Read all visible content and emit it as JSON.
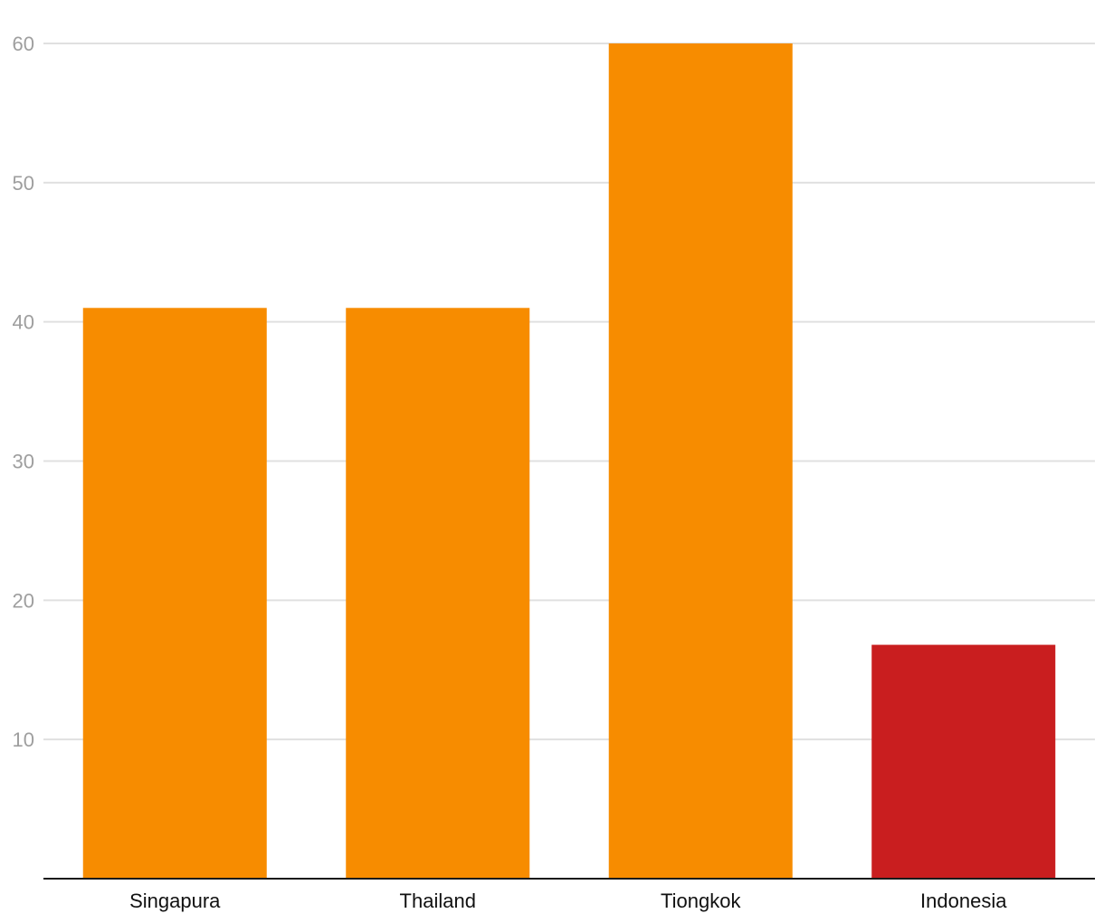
{
  "chart_data": {
    "type": "bar",
    "categories": [
      "Singapura",
      "Thailand",
      "Tiongkok",
      "Indonesia"
    ],
    "values": [
      41,
      41,
      60,
      16.8
    ],
    "colors": [
      "#f78c00",
      "#f78c00",
      "#f78c00",
      "#c91e1f"
    ],
    "yticks": [
      10,
      20,
      30,
      40,
      50,
      60
    ],
    "ylim": [
      0,
      60
    ],
    "grid": true,
    "title": "",
    "xlabel": "",
    "ylabel": ""
  }
}
